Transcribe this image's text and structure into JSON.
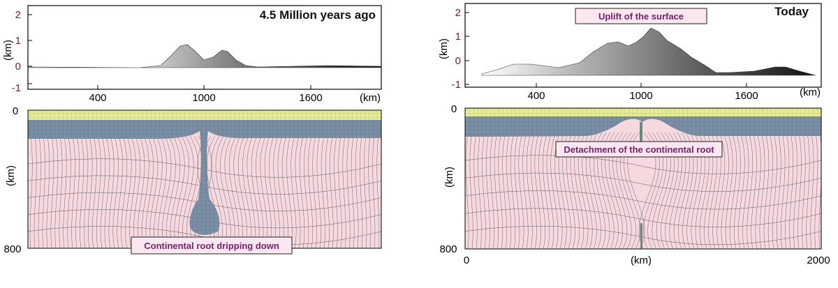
{
  "left_panel": {
    "title": "4.5 Million years ago",
    "topo_y_unit": "(km)",
    "topo_y_ticks": [
      "2",
      "1",
      "0",
      "-1"
    ],
    "topo_x_ticks": [
      "400",
      "1000",
      "1600"
    ],
    "topo_x_unit": "(km)",
    "section_y_unit": "(km)",
    "section_y_top": "0",
    "section_y_bottom": "800",
    "callout": "Continental root dripping down"
  },
  "right_panel": {
    "title": "Today",
    "topo_y_unit": "(km)",
    "topo_y_ticks": [
      "2",
      "1",
      "0",
      "-1"
    ],
    "topo_x_ticks": [
      "400",
      "1000",
      "1600"
    ],
    "topo_x_unit": "(km)",
    "section_y_unit": "(km)",
    "section_y_top": "0",
    "section_y_bottom": "800",
    "section_x_ticks": [
      "0",
      "2000"
    ],
    "section_x_unit": "(km)",
    "callout_top": "Uplift of the surface",
    "callout_mid": "Detachment of the continental root"
  },
  "colors": {
    "crust": "#e6ec96",
    "lithosphere": "#7a8fa6",
    "mantle": "#f6d9df",
    "callout_text": "#7a1f6a",
    "ytick": "#7a1f2a"
  }
}
